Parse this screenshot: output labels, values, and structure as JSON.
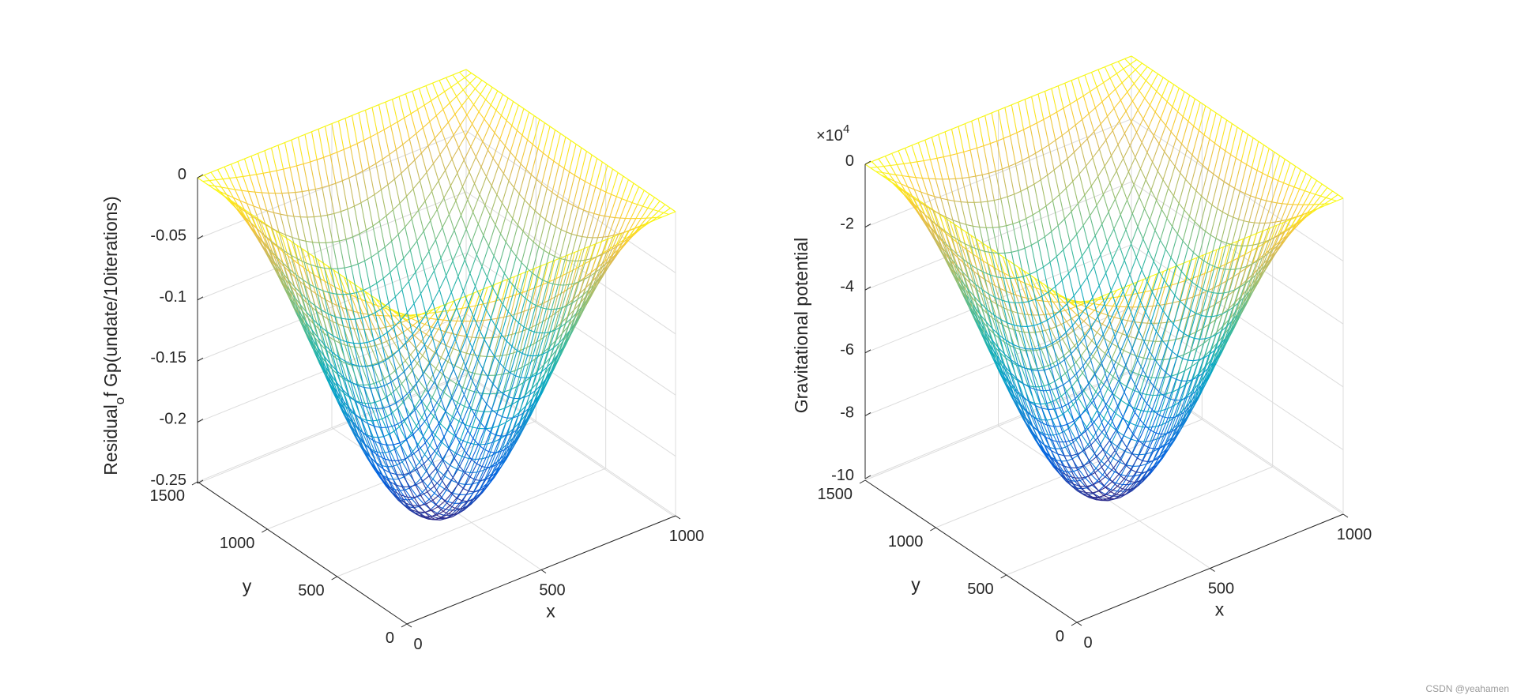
{
  "chart_data": [
    {
      "type": "surface",
      "mesh": "wireframe",
      "colormap": "parula",
      "surface_shape": "sine-bowl",
      "grid_lines": 40,
      "xlabel": "x",
      "ylabel": "y",
      "zlabel_parts": [
        "Residual",
        "o",
        "f Gp(undate/10iterations)"
      ],
      "exponent_label": "",
      "x_ticks": [
        {
          "value": 0,
          "label": "0"
        },
        {
          "value": 500,
          "label": "500"
        },
        {
          "value": 1000,
          "label": "1000"
        }
      ],
      "y_ticks": [
        {
          "value": 0,
          "label": "0"
        },
        {
          "value": 500,
          "label": "500"
        },
        {
          "value": 1000,
          "label": "1000"
        },
        {
          "value": 1500,
          "label": "1500"
        }
      ],
      "z_ticks": [
        {
          "value": 0,
          "label": "0"
        },
        {
          "value": -0.05,
          "label": "-0.05"
        },
        {
          "value": -0.1,
          "label": "-0.1"
        },
        {
          "value": -0.15,
          "label": "-0.15"
        },
        {
          "value": -0.2,
          "label": "-0.2"
        },
        {
          "value": -0.25,
          "label": "-0.25"
        }
      ],
      "xlim": [
        0,
        1000
      ],
      "ylim": [
        0,
        1500
      ],
      "zlim": [
        -0.25,
        0
      ],
      "z_min_value": -0.262,
      "grid": true
    },
    {
      "type": "surface",
      "mesh": "wireframe",
      "colormap": "parula",
      "surface_shape": "sine-bowl",
      "grid_lines": 40,
      "xlabel": "x",
      "ylabel": "y",
      "zlabel_parts": [
        "Gravitational potential",
        "",
        ""
      ],
      "exponent_label": "×10",
      "exponent_power": "4",
      "x_ticks": [
        {
          "value": 0,
          "label": "0"
        },
        {
          "value": 500,
          "label": "500"
        },
        {
          "value": 1000,
          "label": "1000"
        }
      ],
      "y_ticks": [
        {
          "value": 0,
          "label": "0"
        },
        {
          "value": 500,
          "label": "500"
        },
        {
          "value": 1000,
          "label": "1000"
        },
        {
          "value": 1500,
          "label": "1500"
        }
      ],
      "z_ticks": [
        {
          "value": 0,
          "label": "0"
        },
        {
          "value": -2,
          "label": "-2"
        },
        {
          "value": -4,
          "label": "-4"
        },
        {
          "value": -6,
          "label": "-6"
        },
        {
          "value": -8,
          "label": "-8"
        },
        {
          "value": -10,
          "label": "-10"
        }
      ],
      "xlim": [
        0,
        1000
      ],
      "ylim": [
        0,
        1500
      ],
      "zlim": [
        -10,
        0
      ],
      "z_min_value": -10,
      "grid": true
    }
  ],
  "watermark": "CSDN @yeahamen"
}
